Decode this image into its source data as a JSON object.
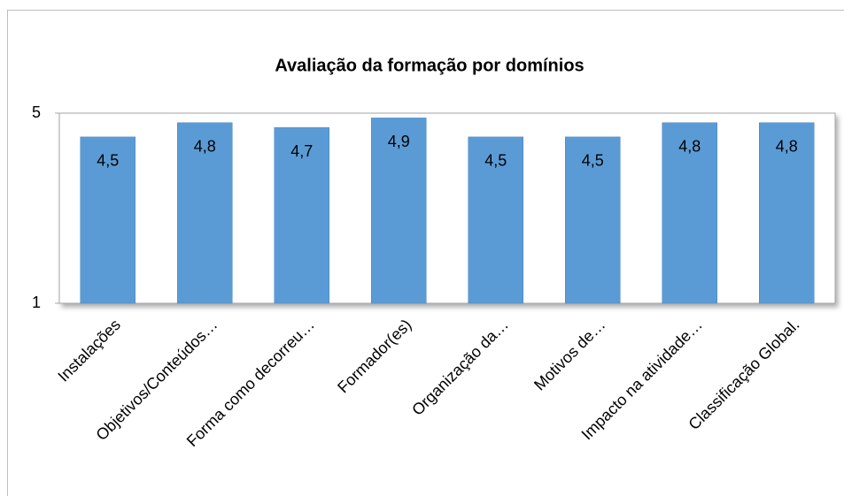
{
  "chart_data": {
    "type": "bar",
    "title": "Avaliação da formação por domínios",
    "categories": [
      "Instalações",
      "Objetivos/Conteúdos…",
      "Forma como decorreu…",
      "Formador(es)",
      "Organização da…",
      "Motivos de…",
      "Impacto na atividade…",
      "Classificação Global."
    ],
    "values": [
      4.5,
      4.8,
      4.7,
      4.9,
      4.5,
      4.5,
      4.8,
      4.8
    ],
    "value_labels": [
      "4,5",
      "4,8",
      "4,7",
      "4,9",
      "4,5",
      "4,5",
      "4,8",
      "4,8"
    ],
    "color": "#5b9bd5",
    "ylim": [
      1,
      5
    ],
    "yticks": [
      1,
      5
    ],
    "grid": false
  }
}
